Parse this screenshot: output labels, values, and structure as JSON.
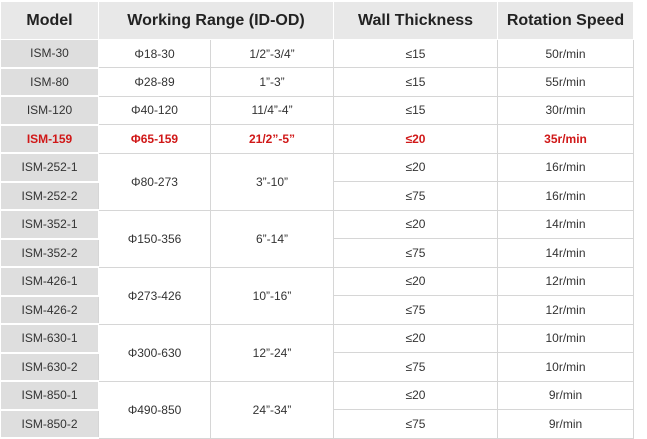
{
  "table": {
    "header": [
      "Model",
      "Working Range (ID-OD)",
      "Wall Thickness",
      "Rotation Speed"
    ],
    "groups": [
      {
        "models": [
          "ISM-30"
        ],
        "range": "Φ18-30",
        "inch": "1/2”-3/4”",
        "walls": [
          "≤15"
        ],
        "speeds": [
          "50r/min"
        ]
      },
      {
        "models": [
          "ISM-80"
        ],
        "range": "Φ28-89",
        "inch": "1”-3”",
        "walls": [
          "≤15"
        ],
        "speeds": [
          "55r/min"
        ]
      },
      {
        "models": [
          "ISM-120"
        ],
        "range": "Φ40-120",
        "inch": "11/4”-4”",
        "walls": [
          "≤15"
        ],
        "speeds": [
          "30r/min"
        ]
      },
      {
        "models": [
          "ISM-159"
        ],
        "range": "Φ65-159",
        "inch": "21/2”-5”",
        "walls": [
          "≤20"
        ],
        "speeds": [
          "35r/min"
        ],
        "highlight": true
      },
      {
        "models": [
          "ISM-252-1",
          "ISM-252-2"
        ],
        "range": "Φ80-273",
        "inch": "3”-10”",
        "walls": [
          "≤20",
          "≤75"
        ],
        "speeds": [
          "16r/min",
          "16r/min"
        ]
      },
      {
        "models": [
          "ISM-352-1",
          "ISM-352-2"
        ],
        "range": "Φ150-356",
        "inch": "6”-14”",
        "walls": [
          "≤20",
          "≤75"
        ],
        "speeds": [
          "14r/min",
          "14r/min"
        ]
      },
      {
        "models": [
          "ISM-426-1",
          "ISM-426-2"
        ],
        "range": "Φ273-426",
        "inch": "10”-16”",
        "walls": [
          "≤20",
          "≤75"
        ],
        "speeds": [
          "12r/min",
          "12r/min"
        ]
      },
      {
        "models": [
          "ISM-630-1",
          "ISM-630-2"
        ],
        "range": "Φ300-630",
        "inch": "12”-24”",
        "walls": [
          "≤20",
          "≤75"
        ],
        "speeds": [
          "10r/min",
          "10r/min"
        ]
      },
      {
        "models": [
          "ISM-850-1",
          "ISM-850-2"
        ],
        "range": "Φ490-850",
        "inch": "24”-34”",
        "walls": [
          "≤20",
          "≤75"
        ],
        "speeds": [
          "9r/min",
          "9r/min"
        ]
      }
    ]
  }
}
